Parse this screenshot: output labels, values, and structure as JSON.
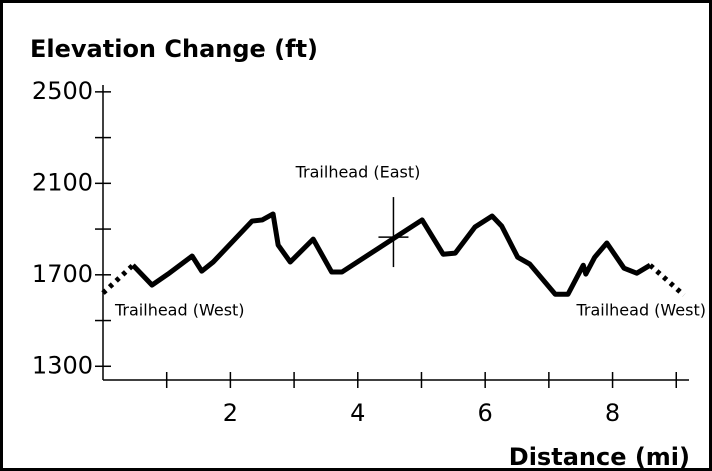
{
  "chart_data": {
    "type": "line",
    "title": "Elevation Change (ft)",
    "x_label": "Distance (mi)",
    "x": [
      0,
      0.47,
      0.77,
      1.02,
      1.4,
      1.55,
      1.73,
      2.34,
      2.5,
      2.67,
      2.75,
      2.94,
      3.3,
      3.59,
      3.75,
      5.01,
      5.34,
      5.53,
      5.84,
      6.11,
      6.26,
      6.51,
      6.7,
      7.1,
      7.3,
      7.54,
      7.58,
      7.72,
      7.91,
      8.18,
      8.38,
      8.59,
      9.12
    ],
    "series": [
      {
        "color": "#000000",
        "dashed": false,
        "values": [
          null,
          1742,
          1655,
          1703,
          1782,
          1716,
          1756,
          1935,
          1940,
          1966,
          1830,
          1756,
          1856,
          1712,
          1712,
          1940,
          1790,
          1795,
          1909,
          1957,
          1913,
          1777,
          1747,
          1615,
          1615,
          1742,
          1703,
          1777,
          1839,
          1729,
          1707,
          1742,
          null
        ]
      },
      {
        "color": "#000000",
        "dashed": true,
        "values": [
          1620,
          1742,
          null,
          null,
          null,
          null,
          null,
          null,
          null,
          null,
          null,
          null,
          null,
          null,
          null,
          null,
          null,
          null,
          null,
          null,
          null,
          null,
          null,
          null,
          null,
          null,
          null,
          null,
          null,
          null,
          null,
          1742,
          1611
        ]
      }
    ],
    "xlim": [
      0,
      9.2
    ],
    "ylim": [
      1240,
      2530
    ],
    "xticks": [
      2,
      4,
      6,
      8
    ],
    "xminor": [
      1,
      3,
      5,
      7,
      9
    ],
    "yticks": [
      1300,
      1700,
      2100,
      2500
    ],
    "yminor": [
      1500,
      1900,
      2300
    ],
    "annotations": [
      {
        "text": "Trailhead (West)"
      },
      {
        "text": "Trailhead (East)",
        "marker": {
          "x": 4.56,
          "y": 1865
        }
      },
      {
        "text": "Trailhead (West)"
      }
    ]
  }
}
